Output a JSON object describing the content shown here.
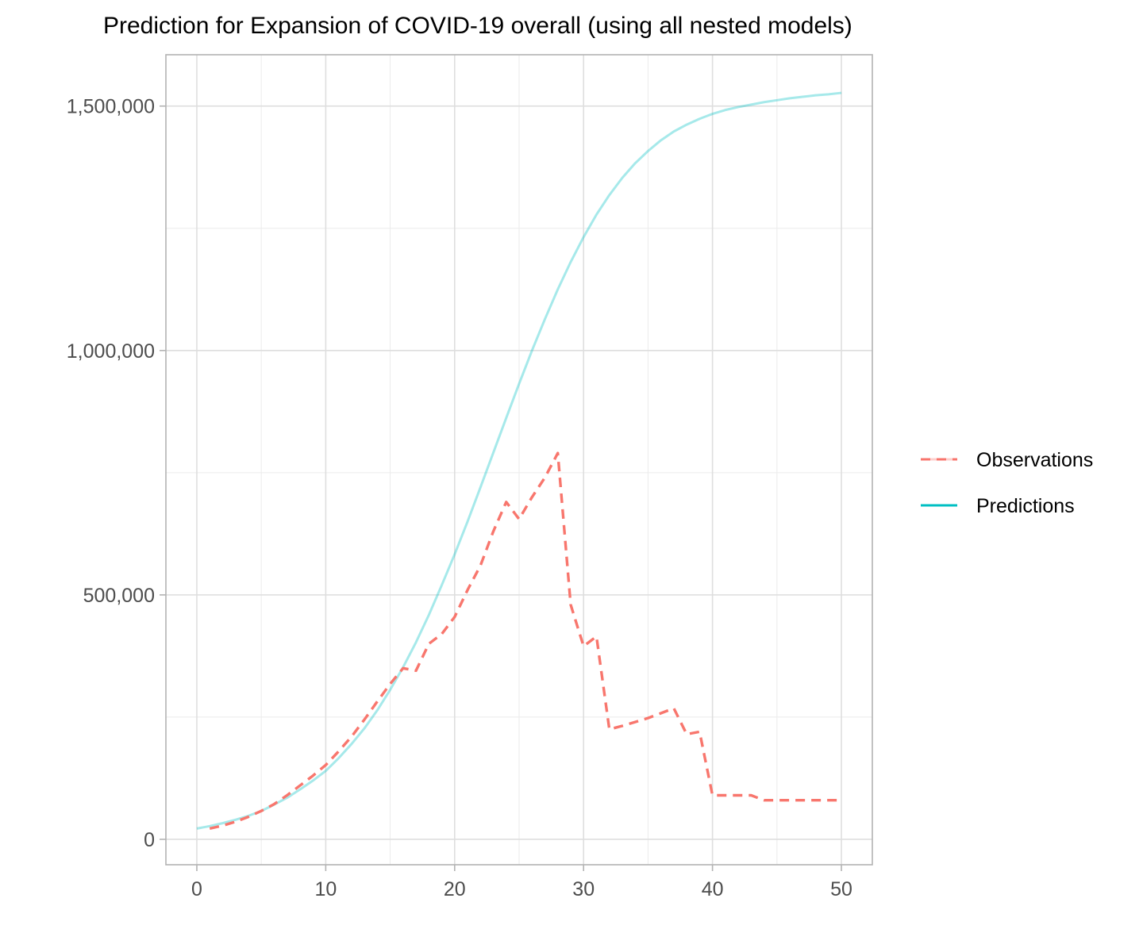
{
  "chart_data": {
    "type": "line",
    "title": "Prediction for Expansion of COVID-19 overall (using all nested models)",
    "xlabel": "",
    "ylabel": "",
    "xlim": [
      -2.4,
      52.4
    ],
    "ylim": [
      -52000,
      1605000
    ],
    "x_ticks": [
      0,
      10,
      20,
      30,
      40,
      50
    ],
    "x_tick_labels": [
      "0",
      "10",
      "20",
      "30",
      "40",
      "50"
    ],
    "y_ticks": [
      0,
      500000,
      1000000,
      1500000
    ],
    "y_tick_labels": [
      "0",
      "500,000",
      "1,000,000",
      "1,500,000"
    ],
    "grid": true,
    "legend_position": "right",
    "series": [
      {
        "name": "Observations",
        "color": "#F8766D",
        "dash": "dashed",
        "x": [
          1,
          2,
          3,
          4,
          5,
          6,
          7,
          8,
          9,
          10,
          11,
          12,
          13,
          14,
          15,
          16,
          17,
          18,
          19,
          20,
          21,
          22,
          23,
          24,
          25,
          26,
          27,
          28,
          29,
          30,
          31,
          32,
          33,
          34,
          35,
          36,
          37,
          38,
          39,
          40,
          41,
          42,
          43,
          44,
          45,
          46,
          47,
          48,
          49,
          50
        ],
        "y": [
          22000,
          28000,
          36000,
          46000,
          58000,
          72000,
          90000,
          110000,
          130000,
          152000,
          180000,
          210000,
          245000,
          282000,
          318000,
          350000,
          345000,
          400000,
          420000,
          455000,
          510000,
          560000,
          630000,
          690000,
          655000,
          700000,
          740000,
          790000,
          480000,
          395000,
          415000,
          225000,
          232000,
          240000,
          248000,
          258000,
          268000,
          215000,
          220000,
          90000,
          90000,
          90000,
          90000,
          80000,
          80000,
          80000,
          80000,
          80000,
          80000,
          80000
        ]
      },
      {
        "name": "Predictions",
        "color": "#00BFC4",
        "dash": "solid",
        "x": [
          0,
          1,
          2,
          3,
          4,
          5,
          6,
          7,
          8,
          9,
          10,
          11,
          12,
          13,
          14,
          15,
          16,
          17,
          18,
          19,
          20,
          21,
          22,
          23,
          24,
          25,
          26,
          27,
          28,
          29,
          30,
          31,
          32,
          33,
          34,
          35,
          36,
          37,
          38,
          39,
          40,
          41,
          42,
          43,
          44,
          45,
          46,
          47,
          48,
          49,
          50
        ],
        "y": [
          22000,
          27000,
          33000,
          40000,
          48000,
          58000,
          71000,
          85000,
          102000,
          120000,
          140000,
          166000,
          195000,
          227000,
          264000,
          306000,
          352000,
          403000,
          459000,
          520000,
          583000,
          650000,
          720000,
          791000,
          862000,
          932000,
          1000000,
          1064000,
          1125000,
          1181000,
          1232000,
          1278000,
          1318000,
          1353000,
          1383000,
          1408000,
          1430000,
          1448000,
          1462000,
          1474000,
          1484000,
          1492000,
          1498000,
          1503000,
          1508000,
          1512000,
          1516000,
          1519000,
          1522000,
          1524000,
          1527000
        ]
      }
    ]
  }
}
